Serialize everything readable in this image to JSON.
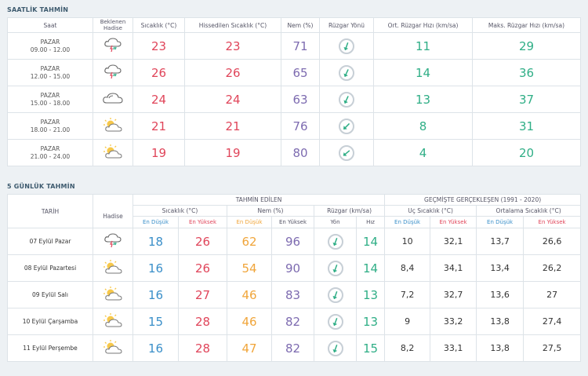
{
  "hourly": {
    "title": "SAATLİK TAHMİN",
    "headers": {
      "time": "Saat",
      "condition": "Beklenen Hadise",
      "temp": "Sıcaklık (°C)",
      "feels": "Hissedilen Sıcaklık (°C)",
      "humidity": "Nem (%)",
      "wind_dir": "Rüzgar Yönü",
      "wind_avg": "Ort. Rüzgar Hızı (km/sa)",
      "wind_max": "Maks. Rüzgar Hızı (km/sa)"
    },
    "rows": [
      {
        "day": "PAZAR",
        "time": "09.00 - 12.00",
        "icon": "thunder-rain-icon",
        "temp": "23",
        "feels": "23",
        "humidity": "71",
        "wind_avg": "11",
        "wind_max": "29"
      },
      {
        "day": "PAZAR",
        "time": "12.00 - 15.00",
        "icon": "thunder-rain-icon",
        "temp": "26",
        "feels": "26",
        "humidity": "65",
        "wind_avg": "14",
        "wind_max": "36"
      },
      {
        "day": "PAZAR",
        "time": "15.00 - 18.00",
        "icon": "cloud-icon",
        "temp": "24",
        "feels": "24",
        "humidity": "63",
        "wind_avg": "13",
        "wind_max": "37"
      },
      {
        "day": "PAZAR",
        "time": "18.00 - 21.00",
        "icon": "partly-cloudy-icon",
        "temp": "21",
        "feels": "21",
        "humidity": "76",
        "wind_avg": "8",
        "wind_max": "31"
      },
      {
        "day": "PAZAR",
        "time": "21.00 - 24.00",
        "icon": "partly-cloudy-icon",
        "temp": "19",
        "feels": "19",
        "humidity": "80",
        "wind_avg": "4",
        "wind_max": "20"
      }
    ]
  },
  "daily": {
    "title": "5 GÜNLÜK TAHMİN",
    "headers": {
      "date": "TARİH",
      "forecast": "TAHMİN EDİLEN",
      "history": "GEÇMİŞTE GERÇEKLEŞEN (1991 - 2020)",
      "condition": "Hadise",
      "temp": "Sıcaklık (°C)",
      "humidity": "Nem (%)",
      "wind": "Rüzgar (km/sa)",
      "extreme": "Uç Sıcaklık (°C)",
      "avg": "Ortalama Sıcaklık (°C)",
      "min": "En Düşük",
      "max": "En Yüksek",
      "dir": "Yön",
      "speed": "Hız"
    },
    "rows": [
      {
        "date": "07 Eylül Pazar",
        "icon": "thunder-rain-icon",
        "tmin": "18",
        "tmax": "26",
        "hmin": "62",
        "hmax": "96",
        "speed": "14",
        "xmin": "10",
        "xmax": "32,1",
        "amin": "13,7",
        "amax": "26,6"
      },
      {
        "date": "08 Eylül Pazartesi",
        "icon": "partly-cloudy-icon",
        "tmin": "16",
        "tmax": "26",
        "hmin": "54",
        "hmax": "90",
        "speed": "14",
        "xmin": "8,4",
        "xmax": "34,1",
        "amin": "13,4",
        "amax": "26,2"
      },
      {
        "date": "09 Eylül Salı",
        "icon": "partly-cloudy-icon",
        "tmin": "16",
        "tmax": "27",
        "hmin": "46",
        "hmax": "83",
        "speed": "13",
        "xmin": "7,2",
        "xmax": "32,7",
        "amin": "13,6",
        "amax": "27"
      },
      {
        "date": "10 Eylül Çarşamba",
        "icon": "partly-cloudy-icon",
        "tmin": "15",
        "tmax": "28",
        "hmin": "46",
        "hmax": "82",
        "speed": "13",
        "xmin": "9",
        "xmax": "33,2",
        "amin": "13,8",
        "amax": "27,4"
      },
      {
        "date": "11 Eylül Perşembe",
        "icon": "partly-cloudy-icon",
        "tmin": "16",
        "tmax": "28",
        "hmin": "47",
        "hmax": "82",
        "speed": "15",
        "xmin": "8,2",
        "xmax": "33,1",
        "amin": "13,8",
        "amax": "27,5"
      }
    ]
  },
  "colors": {
    "temp": "#e0455a",
    "humidity": "#7d6bb0",
    "wind": "#2fae86",
    "low": "#3a8fc9",
    "high": "#e0455a",
    "orange": "#f0a53a"
  }
}
